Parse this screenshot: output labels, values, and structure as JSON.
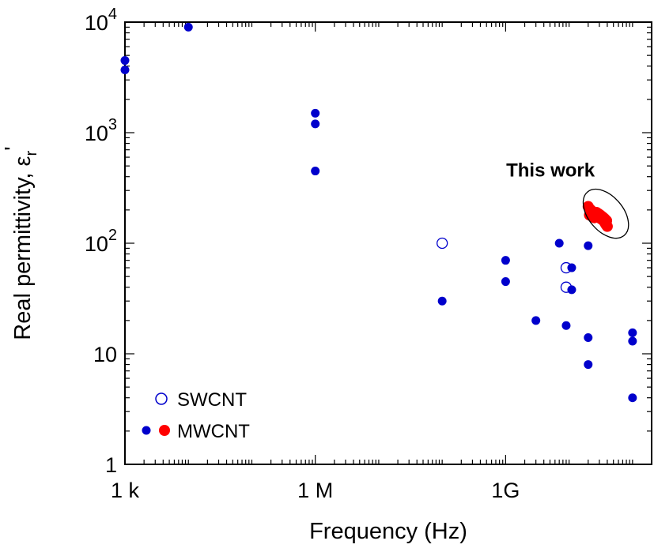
{
  "chart_data": {
    "type": "scatter",
    "xlabel": "Frequency (Hz)",
    "ylabel": "Real permittivity, ε",
    "ylabel_sub": "r",
    "ylabel_prime": "'",
    "xscale": "log",
    "yscale": "log",
    "xlim": [
      1000,
      200000000000
    ],
    "ylim": [
      1,
      10000
    ],
    "grid": false,
    "legend_position": "bottom-left",
    "x_tick_labels": [
      {
        "value": 1000,
        "label": "1 k"
      },
      {
        "value": 1000000,
        "label": "1 M"
      },
      {
        "value": 1000000000,
        "label": "1G"
      }
    ],
    "y_tick_labels": [
      {
        "value": 1,
        "label": "1",
        "base": "1",
        "exp": ""
      },
      {
        "value": 10,
        "label": "10",
        "base": "10",
        "exp": ""
      },
      {
        "value": 100,
        "label": "10^2",
        "base": "10",
        "exp": "2"
      },
      {
        "value": 1000,
        "label": "10^3",
        "base": "10",
        "exp": "3"
      },
      {
        "value": 10000,
        "label": "10^4",
        "base": "10",
        "exp": "4"
      }
    ],
    "annotations": [
      {
        "text": "This work",
        "target_x": 38000000000,
        "target_y": 185
      }
    ],
    "series": [
      {
        "name": "SWCNT",
        "color": "#0000cc",
        "marker": "open-circle",
        "points": [
          {
            "x": 100000000,
            "y": 100
          },
          {
            "x": 9000000000,
            "y": 60
          },
          {
            "x": 9000000000,
            "y": 40
          }
        ]
      },
      {
        "name": "MWCNT",
        "color": "#0000cc",
        "legend_colors": [
          "#0000cc",
          "#ff0000"
        ],
        "marker": "filled-circle",
        "points": [
          {
            "x": 1000,
            "y": 4500
          },
          {
            "x": 1000,
            "y": 3700
          },
          {
            "x": 10000,
            "y": 9000
          },
          {
            "x": 1000000,
            "y": 1500
          },
          {
            "x": 1000000,
            "y": 1200
          },
          {
            "x": 1000000,
            "y": 450
          },
          {
            "x": 100000000,
            "y": 30
          },
          {
            "x": 1000000000,
            "y": 70
          },
          {
            "x": 1000000000,
            "y": 45
          },
          {
            "x": 3000000000,
            "y": 20
          },
          {
            "x": 7000000000,
            "y": 100
          },
          {
            "x": 9000000000,
            "y": 18
          },
          {
            "x": 11000000000,
            "y": 60
          },
          {
            "x": 11000000000,
            "y": 38
          },
          {
            "x": 20000000000,
            "y": 95
          },
          {
            "x": 20000000000,
            "y": 14
          },
          {
            "x": 20000000000,
            "y": 8
          },
          {
            "x": 100000000000,
            "y": 15.5
          },
          {
            "x": 100000000000,
            "y": 13
          },
          {
            "x": 100000000000,
            "y": 4
          }
        ]
      },
      {
        "name": "This work",
        "color": "#ff0000",
        "marker": "filled-circle",
        "points": [
          {
            "x": 20000000000,
            "y": 215
          },
          {
            "x": 21000000000,
            "y": 205
          },
          {
            "x": 22000000000,
            "y": 200
          },
          {
            "x": 23000000000,
            "y": 195
          },
          {
            "x": 24000000000,
            "y": 190
          },
          {
            "x": 25000000000,
            "y": 185
          },
          {
            "x": 26000000000,
            "y": 182
          },
          {
            "x": 27000000000,
            "y": 178
          },
          {
            "x": 28000000000,
            "y": 175
          },
          {
            "x": 29000000000,
            "y": 172
          },
          {
            "x": 30000000000,
            "y": 170
          },
          {
            "x": 31000000000,
            "y": 168
          },
          {
            "x": 32000000000,
            "y": 166
          },
          {
            "x": 33000000000,
            "y": 164
          },
          {
            "x": 34000000000,
            "y": 162
          },
          {
            "x": 35000000000,
            "y": 160
          },
          {
            "x": 36000000000,
            "y": 156
          },
          {
            "x": 37000000000,
            "y": 152
          },
          {
            "x": 38000000000,
            "y": 148
          },
          {
            "x": 39000000000,
            "y": 145
          },
          {
            "x": 40000000000,
            "y": 142
          },
          {
            "x": 21000000000,
            "y": 180
          },
          {
            "x": 23000000000,
            "y": 175
          },
          {
            "x": 25000000000,
            "y": 170
          },
          {
            "x": 27000000000,
            "y": 190
          },
          {
            "x": 29000000000,
            "y": 185
          },
          {
            "x": 31000000000,
            "y": 180
          },
          {
            "x": 33000000000,
            "y": 175
          },
          {
            "x": 35000000000,
            "y": 170
          },
          {
            "x": 37000000000,
            "y": 165
          },
          {
            "x": 39000000000,
            "y": 160
          }
        ]
      }
    ]
  }
}
